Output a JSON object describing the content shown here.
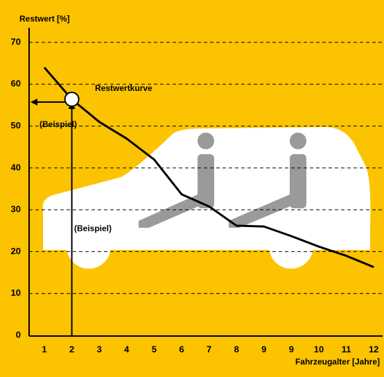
{
  "chart_data": {
    "type": "line",
    "title": "Restwert [%]",
    "x_label": "Fahrzeugalter [Jahre]",
    "categories": [
      "1",
      "2",
      "3",
      "4",
      "5",
      "6",
      "7",
      "8",
      "9",
      "9",
      "10",
      "11",
      "12"
    ],
    "series": [
      {
        "name": "Restwertkurve",
        "color": "#000000",
        "values": [
          64,
          56.4,
          51,
          47,
          42,
          33.7,
          30.8,
          26.2,
          26,
          23.7,
          21.2,
          19,
          16.3
        ]
      }
    ],
    "annotations": [
      "(Beispiel)",
      "(Beispiel)"
    ],
    "ylim": [
      0,
      70
    ],
    "yticks": [
      0,
      10,
      20,
      30,
      40,
      50,
      60,
      70
    ],
    "grid": true,
    "background": "#fcc300"
  }
}
